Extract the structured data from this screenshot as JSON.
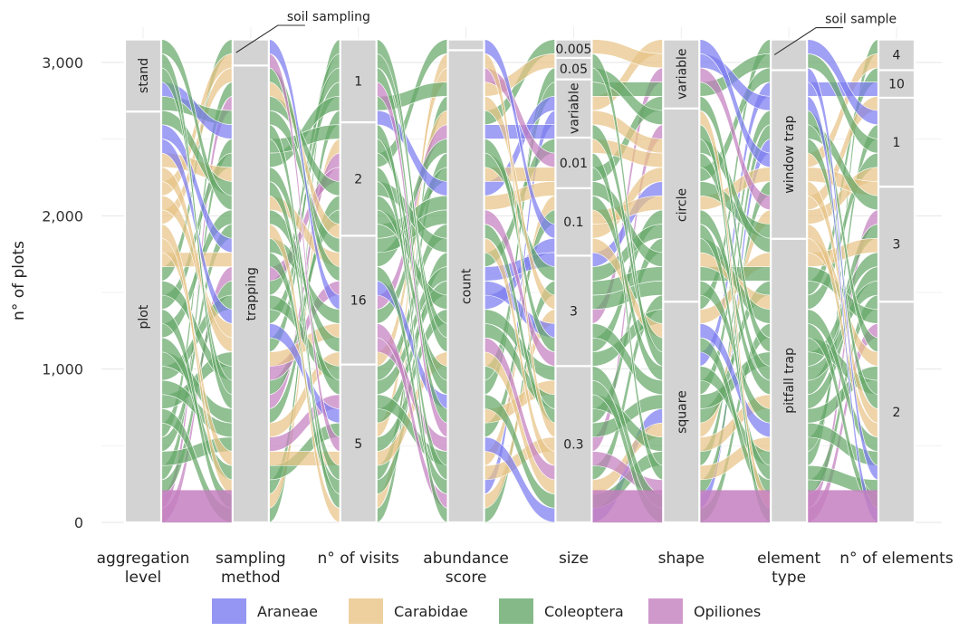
{
  "chart_data": {
    "type": "alluvial",
    "ylabel": "n° of plots",
    "ylim": [
      0,
      3160
    ],
    "y_ticks": [
      {
        "value": 0,
        "label": "0"
      },
      {
        "value": 1000,
        "label": "1,000"
      },
      {
        "value": 2000,
        "label": "2,000"
      },
      {
        "value": 3000,
        "label": "3,000"
      }
    ],
    "grid": true,
    "legend_position": "bottom",
    "series": [
      {
        "name": "Araneae",
        "color": "#7b7bf0"
      },
      {
        "name": "Carabidae",
        "color": "#e8c486"
      },
      {
        "name": "Coleoptera",
        "color": "#66a76a"
      },
      {
        "name": "Opiliones",
        "color": "#c47fbf"
      }
    ],
    "axes": [
      {
        "name": "aggregation level",
        "label_lines": [
          "aggregation",
          "level"
        ],
        "strata": [
          {
            "label": "plot",
            "from": 0,
            "to": 2680
          },
          {
            "label": "stand",
            "from": 2680,
            "to": 3150
          }
        ]
      },
      {
        "name": "sampling method",
        "label_lines": [
          "sampling",
          "method"
        ],
        "strata": [
          {
            "label": "trapping",
            "from": 0,
            "to": 2980
          },
          {
            "label": "soil sampling",
            "from": 2980,
            "to": 3150,
            "callout": true
          }
        ]
      },
      {
        "name": "n° of visits",
        "label_lines": [
          "n° of visits"
        ],
        "strata": [
          {
            "label": "5",
            "from": 0,
            "to": 1030
          },
          {
            "label": "16",
            "from": 1030,
            "to": 1870
          },
          {
            "label": "2",
            "from": 1870,
            "to": 2610
          },
          {
            "label": "1",
            "from": 2610,
            "to": 3150
          }
        ]
      },
      {
        "name": "abundance score",
        "label_lines": [
          "abundance",
          "score"
        ],
        "strata": [
          {
            "label": "count",
            "from": 0,
            "to": 3080
          },
          {
            "label": "",
            "from": 3080,
            "to": 3150
          }
        ]
      },
      {
        "name": "size",
        "label_lines": [
          "size"
        ],
        "strata": [
          {
            "label": "0.3",
            "from": 0,
            "to": 1020
          },
          {
            "label": "3",
            "from": 1020,
            "to": 1740
          },
          {
            "label": "0.1",
            "from": 1740,
            "to": 2180
          },
          {
            "label": "0.01",
            "from": 2180,
            "to": 2510
          },
          {
            "label": "variable",
            "from": 2510,
            "to": 2890,
            "vertical": true
          },
          {
            "label": "0.05",
            "from": 2890,
            "to": 3030
          },
          {
            "label": "0.005",
            "from": 3030,
            "to": 3150
          }
        ]
      },
      {
        "name": "shape",
        "label_lines": [
          "shape"
        ],
        "strata": [
          {
            "label": "square",
            "from": 0,
            "to": 1440
          },
          {
            "label": "circle",
            "from": 1440,
            "to": 2700
          },
          {
            "label": "variable",
            "from": 2700,
            "to": 3150
          }
        ]
      },
      {
        "name": "element type",
        "label_lines": [
          "element",
          "type"
        ],
        "strata": [
          {
            "label": "pitfall trap",
            "from": 0,
            "to": 1850
          },
          {
            "label": "window trap",
            "from": 1850,
            "to": 2950
          },
          {
            "label": "soil sample",
            "from": 2950,
            "to": 3150,
            "callout": true
          }
        ]
      },
      {
        "name": "n° of elements",
        "label_lines": [
          "n° of elements"
        ],
        "strata": [
          {
            "label": "2",
            "from": 0,
            "to": 1440
          },
          {
            "label": "3",
            "from": 1440,
            "to": 2190
          },
          {
            "label": "1",
            "from": 2190,
            "to": 2770
          },
          {
            "label": "10",
            "from": 2770,
            "to": 2950
          },
          {
            "label": "4",
            "from": 2950,
            "to": 3150
          }
        ]
      }
    ]
  }
}
